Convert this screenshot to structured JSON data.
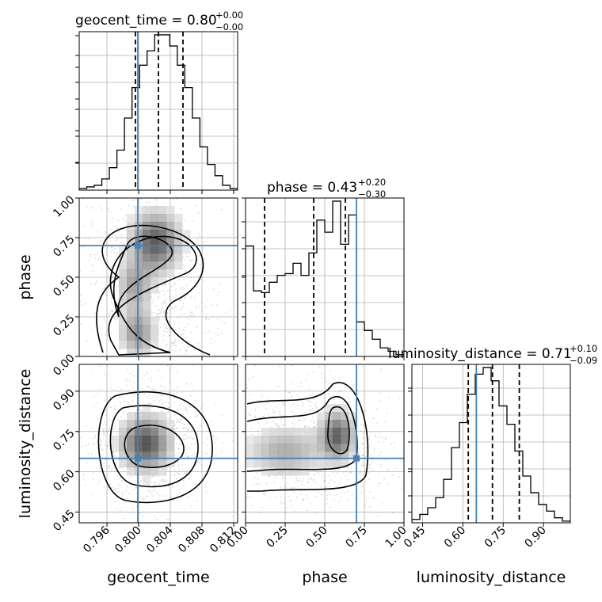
{
  "figure": {
    "params": [
      "geocent_time",
      "phase",
      "luminosity_distance"
    ],
    "titles": [
      {
        "main": "geocent_time = 0.80",
        "sup": "+0.00",
        "sub": "−0.00"
      },
      {
        "main": "phase = 0.43",
        "sup": "+0.20",
        "sub": "−0.30"
      },
      {
        "main": "luminosity_distance = 0.71",
        "sup": "+0.10",
        "sub": "−0.09"
      }
    ],
    "axis_labels": {
      "x": [
        "geocent_time",
        "phase",
        "luminosity_distance"
      ],
      "y": [
        "phase",
        "luminosity_distance"
      ]
    }
  },
  "chart_data": {
    "type": "scatter",
    "variant": "corner_plot",
    "grid": true,
    "colors": {
      "truth": "#4682b4",
      "hist": "#000000",
      "contour": "#000000",
      "points": "#999999"
    },
    "parameters": [
      {
        "name": "geocent_time",
        "range": [
          0.7925,
          0.8125
        ],
        "ticks": [
          0.796,
          0.8,
          0.804,
          0.808,
          0.812
        ],
        "tick_labels": [
          "0.796",
          "0.800",
          "0.804",
          "0.808",
          "0.812"
        ],
        "truth": 0.7999,
        "quantiles": [
          0.7996,
          0.8025,
          0.8056
        ],
        "median": 0.8,
        "err_plus": 0.0,
        "err_minus": 0.0,
        "hist_counts": [
          1,
          2,
          3,
          7,
          14,
          25,
          45,
          64,
          78,
          87,
          97,
          97,
          90,
          78,
          64,
          45,
          27,
          16,
          9,
          3,
          1
        ]
      },
      {
        "name": "phase",
        "range": [
          0.0,
          1.0
        ],
        "ticks": [
          0.0,
          0.25,
          0.5,
          0.75,
          1.0
        ],
        "tick_labels": [
          "0.00",
          "0.25",
          "0.50",
          "0.75",
          "1.00"
        ],
        "truth": 0.7,
        "quantiles": [
          0.12,
          0.43,
          0.63
        ],
        "median": 0.43,
        "err_plus": 0.2,
        "err_minus": 0.3,
        "hist_counts": [
          64,
          38,
          37,
          43,
          47,
          48,
          54,
          47,
          60,
          79,
          72,
          90,
          65,
          82,
          20,
          15,
          10,
          5,
          3,
          1
        ]
      },
      {
        "name": "luminosity_distance",
        "range": [
          0.41,
          1.0
        ],
        "ticks": [
          0.45,
          0.6,
          0.75,
          0.9
        ],
        "tick_labels": [
          "0.45",
          "0.60",
          "0.75",
          "0.90"
        ],
        "truth": 0.65,
        "quantiles": [
          0.62,
          0.71,
          0.81
        ],
        "median": 0.71,
        "err_plus": 0.1,
        "err_minus": 0.09,
        "hist_counts": [
          2,
          5,
          9,
          15,
          26,
          45,
          60,
          77,
          89,
          93,
          85,
          70,
          59,
          43,
          28,
          18,
          11,
          7,
          3,
          1
        ]
      }
    ]
  }
}
